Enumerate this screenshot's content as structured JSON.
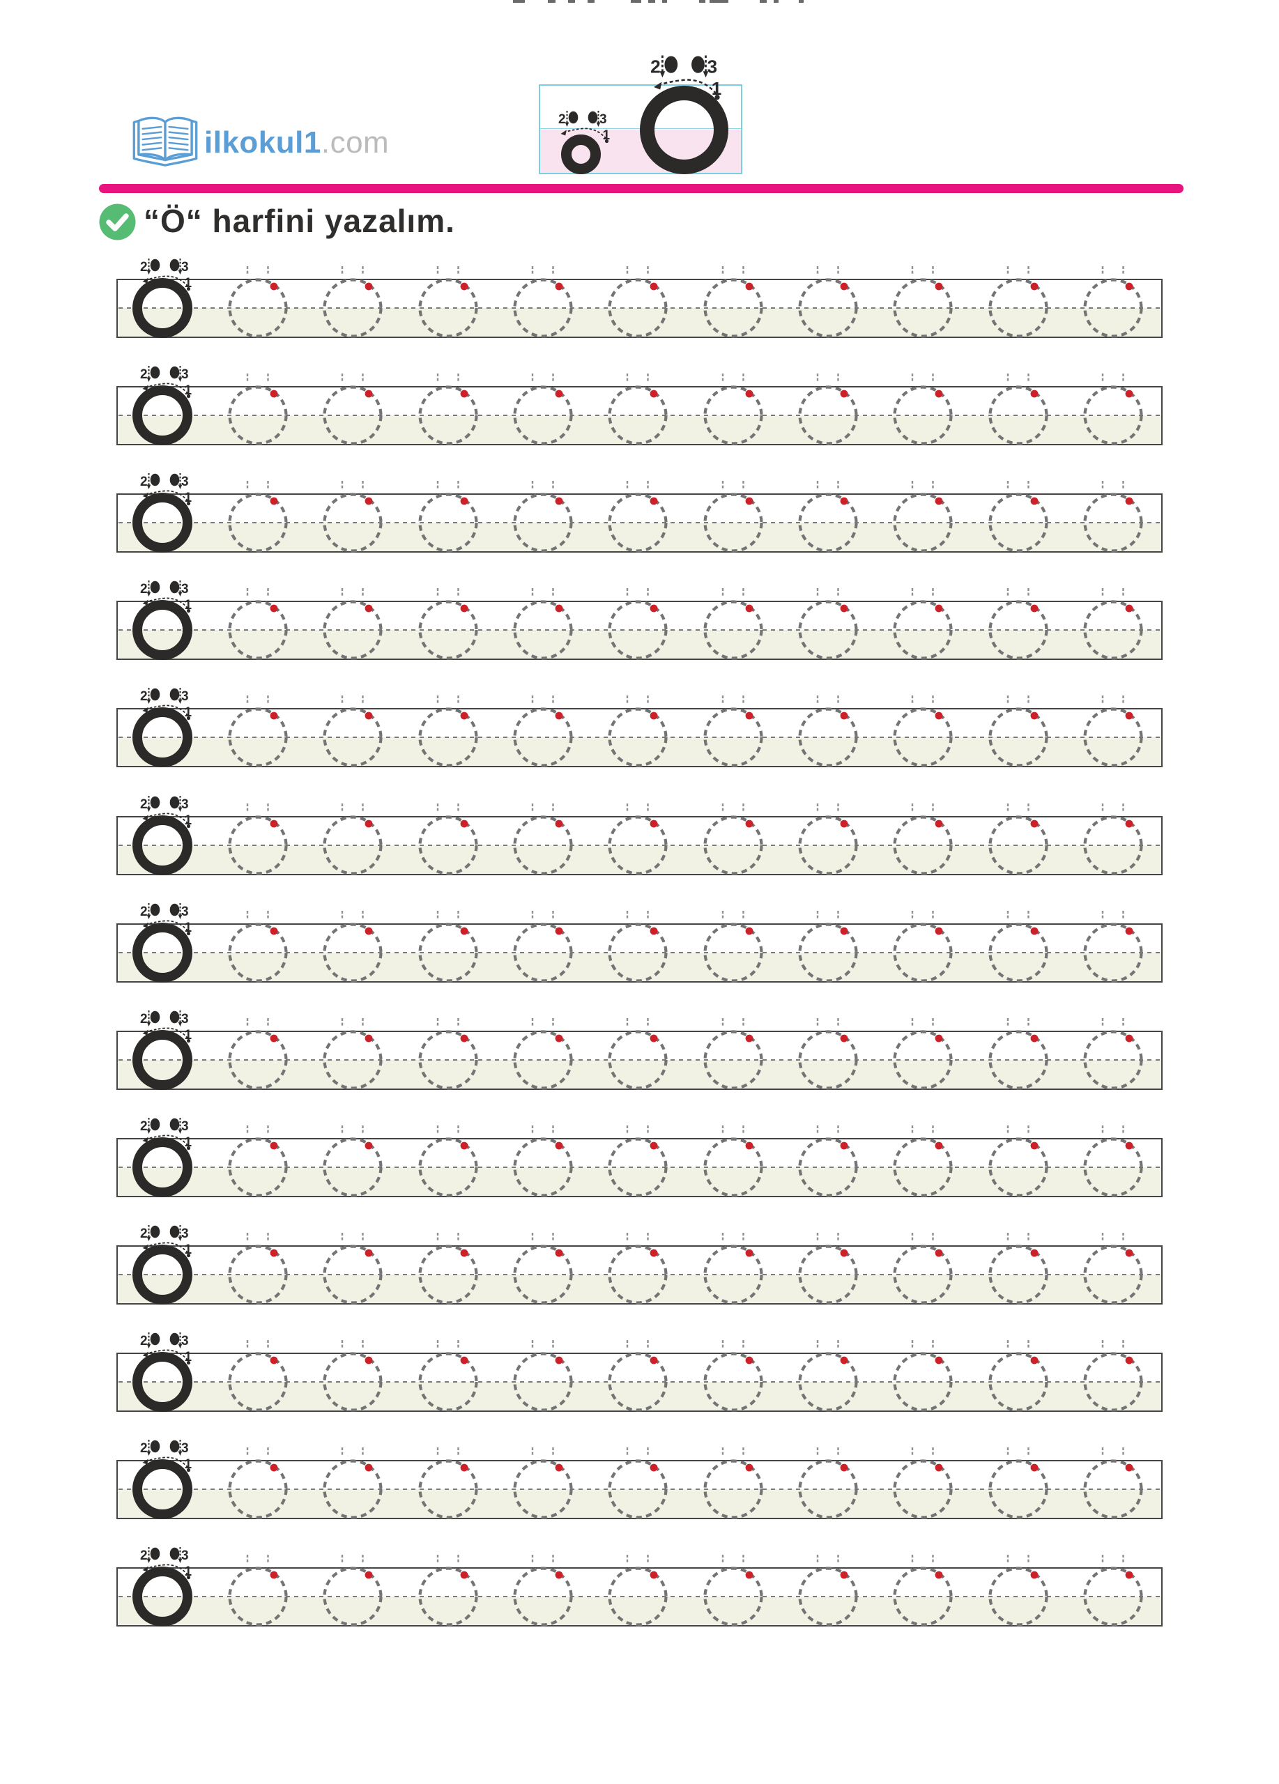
{
  "logo": {
    "site_name": "ilkokul1",
    "site_tld": ".com",
    "icon": "open-book-icon",
    "colors": {
      "brand_blue": "#5b9ed6",
      "tld_gray": "#b9bbbd"
    }
  },
  "strokes": {
    "s1": "1",
    "s2": "2",
    "s3": "3"
  },
  "header_diagram": {
    "letter_uppercase": "Ö",
    "letter_lowercase": "ö",
    "colors": {
      "box_border": "#7bcfe2",
      "lower_half_fill": "#f8e3ef",
      "letter": "#2b2a29"
    }
  },
  "divider": {
    "color": "#e8137f"
  },
  "instruction": {
    "icon": "check-icon",
    "icon_color": "#56bb73",
    "text": "“Ö“ harfini yazalım."
  },
  "practice": {
    "row_count": 13,
    "circles_per_row": 10,
    "colors": {
      "line_fill_bottom": "#f1f2e3",
      "line_border": "#454545",
      "trace_circle": "#747474",
      "start_dot": "#cc2129",
      "letter": "#2b2a29"
    }
  }
}
